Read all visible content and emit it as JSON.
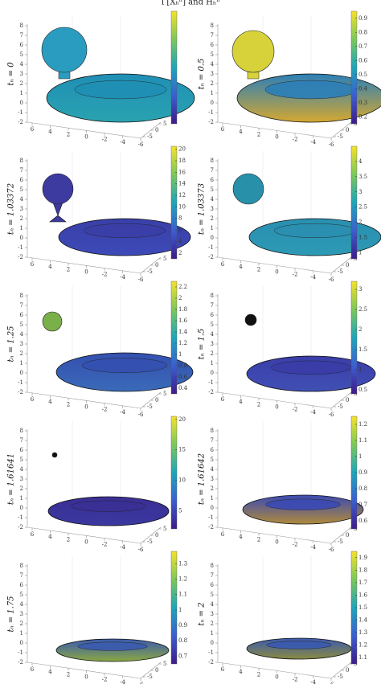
{
  "title": "Γ[Xₕⁿ] and Hₕⁿ",
  "axes": {
    "zticks": [
      -2,
      -1,
      0,
      1,
      2,
      3,
      4,
      5,
      6,
      7,
      8
    ],
    "xticks": [
      6,
      4,
      2,
      0,
      -2,
      -4,
      -6
    ],
    "yticks": [
      -5,
      0,
      5
    ]
  },
  "panels": [
    {
      "label": "tₙ = 0"
    },
    {
      "label": "tₙ = 0.5",
      "clim": [
        0.15,
        0.95
      ],
      "colorbar_ticks": [
        0.2,
        0.3,
        0.4,
        0.5,
        0.6,
        0.7,
        0.8,
        0.9
      ]
    },
    {
      "label": "tₙ = 1.03372",
      "clim": [
        1,
        20.5
      ],
      "colorbar_ticks": [
        2,
        4,
        6,
        8,
        10,
        12,
        14,
        16,
        18,
        20
      ]
    },
    {
      "label": "tₙ = 1.03373",
      "clim": [
        0.8,
        4.5
      ],
      "colorbar_ticks": [
        1,
        1.5,
        2,
        2.5,
        3,
        3.5,
        4
      ]
    },
    {
      "label": "tₙ = 1.25",
      "clim": [
        0.3,
        2.3
      ],
      "colorbar_ticks": [
        0.4,
        0.6,
        0.8,
        1,
        1.2,
        1.4,
        1.6,
        1.8,
        2,
        2.2
      ]
    },
    {
      "label": "tₙ = 1.5",
      "clim": [
        0.4,
        3.2
      ],
      "colorbar_ticks": [
        0.5,
        1,
        1.5,
        2,
        2.5,
        3
      ]
    },
    {
      "label": "tₙ = 1.61641",
      "clim": [
        2,
        20.5
      ],
      "colorbar_ticks": [
        5,
        10,
        15,
        20
      ]
    },
    {
      "label": "tₙ = 1.61642",
      "clim": [
        0.55,
        1.25
      ],
      "colorbar_ticks": [
        0.6,
        0.7,
        0.8,
        0.9,
        1,
        1.1,
        1.2
      ]
    },
    {
      "label": "tₙ = 1.75",
      "clim": [
        0.65,
        1.38
      ],
      "colorbar_ticks": [
        0.7,
        0.8,
        0.9,
        1,
        1.1,
        1.2,
        1.3
      ]
    },
    {
      "label": "tₙ = 2",
      "clim": [
        1.05,
        1.95
      ],
      "colorbar_ticks": [
        1.1,
        1.2,
        1.3,
        1.4,
        1.5,
        1.6,
        1.7,
        1.8,
        1.9
      ]
    }
  ]
}
